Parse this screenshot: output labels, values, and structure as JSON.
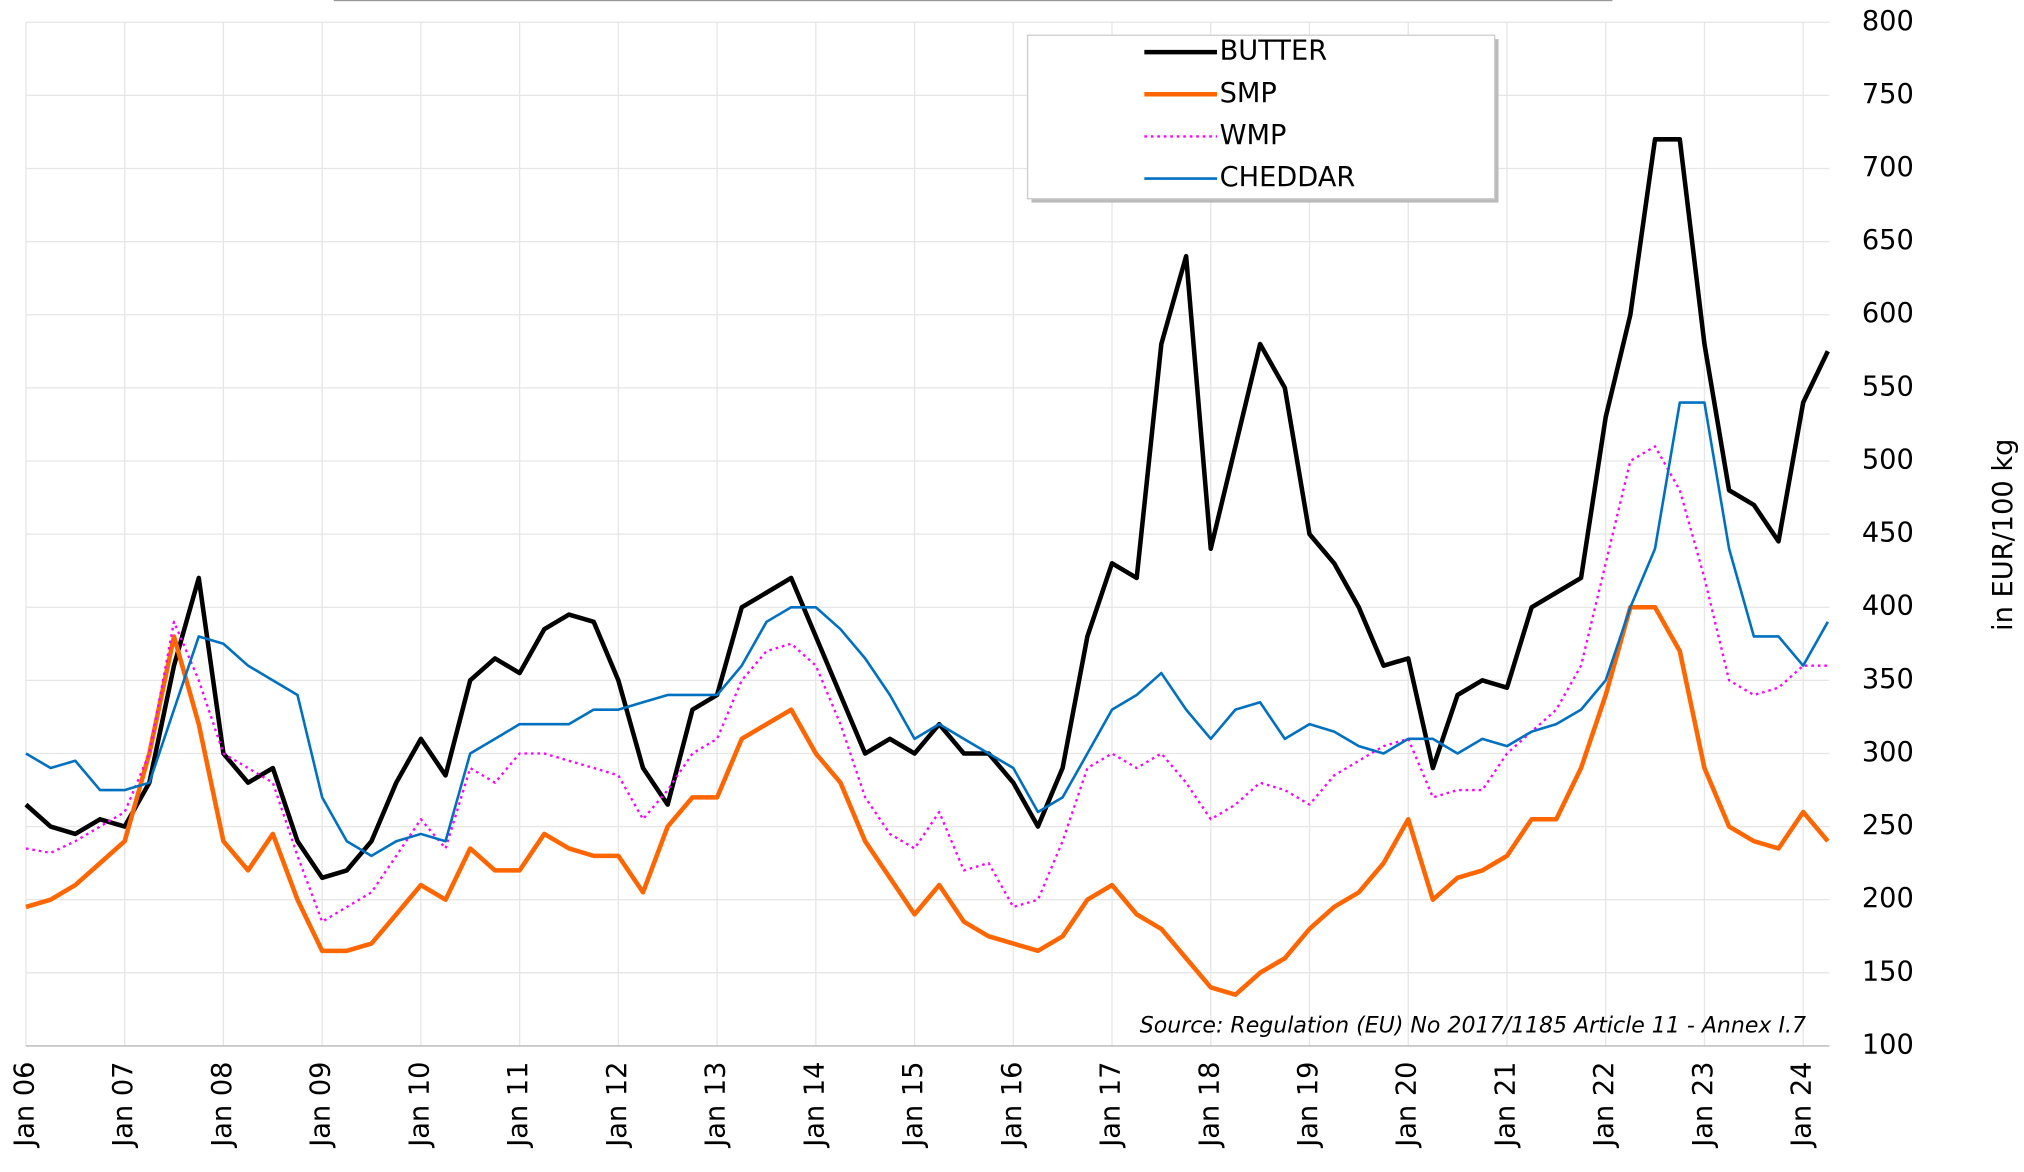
{
  "chart_data": {
    "type": "line",
    "source": "Source: Regulation (EU) No 2017/1185 Article 11 - Annex I.7",
    "y_label": "in EUR/100 kg",
    "x": [
      "2006-01",
      "2006-04",
      "2006-07",
      "2006-10",
      "2007-01",
      "2007-04",
      "2007-07",
      "2007-10",
      "2008-01",
      "2008-04",
      "2008-07",
      "2008-10",
      "2009-01",
      "2009-04",
      "2009-07",
      "2009-10",
      "2010-01",
      "2010-04",
      "2010-07",
      "2010-10",
      "2011-01",
      "2011-04",
      "2011-07",
      "2011-10",
      "2012-01",
      "2012-04",
      "2012-07",
      "2012-10",
      "2013-01",
      "2013-04",
      "2013-07",
      "2013-10",
      "2014-01",
      "2014-04",
      "2014-07",
      "2014-10",
      "2015-01",
      "2015-04",
      "2015-07",
      "2015-10",
      "2016-01",
      "2016-04",
      "2016-07",
      "2016-10",
      "2017-01",
      "2017-04",
      "2017-07",
      "2017-10",
      "2018-01",
      "2018-04",
      "2018-07",
      "2018-10",
      "2019-01",
      "2019-04",
      "2019-07",
      "2019-10",
      "2020-01",
      "2020-04",
      "2020-07",
      "2020-10",
      "2021-01",
      "2021-04",
      "2021-07",
      "2021-10",
      "2022-01",
      "2022-04",
      "2022-07",
      "2022-10",
      "2023-01",
      "2023-04",
      "2023-07",
      "2023-10",
      "2024-01",
      "2024-04"
    ],
    "series": [
      {
        "name": "BUTTER",
        "color": "#000000",
        "values": [
          265,
          250,
          245,
          255,
          250,
          280,
          360,
          420,
          300,
          280,
          290,
          240,
          215,
          220,
          240,
          280,
          310,
          285,
          350,
          365,
          355,
          385,
          395,
          390,
          350,
          290,
          265,
          330,
          340,
          400,
          410,
          420,
          380,
          340,
          300,
          310,
          300,
          320,
          300,
          300,
          280,
          250,
          290,
          380,
          430,
          420,
          580,
          640,
          440,
          510,
          580,
          550,
          450,
          430,
          400,
          360,
          365,
          290,
          340,
          350,
          345,
          400,
          410,
          420,
          530,
          600,
          720,
          720,
          580,
          480,
          470,
          445,
          540,
          575
        ]
      },
      {
        "name": "SMP",
        "color": "#ff6600",
        "values": [
          195,
          200,
          210,
          225,
          240,
          300,
          380,
          320,
          240,
          220,
          245,
          200,
          165,
          165,
          170,
          190,
          210,
          200,
          235,
          220,
          220,
          245,
          235,
          230,
          230,
          205,
          250,
          270,
          270,
          310,
          320,
          330,
          300,
          280,
          240,
          215,
          190,
          210,
          185,
          175,
          170,
          165,
          175,
          200,
          210,
          190,
          180,
          160,
          140,
          135,
          150,
          160,
          180,
          195,
          205,
          225,
          255,
          200,
          215,
          220,
          230,
          255,
          255,
          290,
          340,
          400,
          400,
          370,
          290,
          250,
          240,
          235,
          260,
          240
        ]
      },
      {
        "name": "WMP",
        "color": "#ff00ff",
        "values": [
          235,
          232,
          240,
          250,
          260,
          300,
          390,
          350,
          300,
          290,
          280,
          230,
          185,
          195,
          205,
          230,
          255,
          235,
          290,
          280,
          300,
          300,
          295,
          290,
          285,
          255,
          275,
          300,
          310,
          350,
          370,
          375,
          360,
          320,
          270,
          245,
          235,
          260,
          220,
          225,
          195,
          200,
          240,
          290,
          300,
          290,
          300,
          280,
          255,
          265,
          280,
          275,
          265,
          285,
          295,
          305,
          310,
          270,
          275,
          275,
          300,
          315,
          330,
          360,
          430,
          500,
          510,
          480,
          420,
          350,
          340,
          345,
          360,
          360
        ]
      },
      {
        "name": "CHEDDAR",
        "color": "#0070c0",
        "values": [
          300,
          290,
          295,
          275,
          275,
          280,
          330,
          380,
          375,
          360,
          350,
          340,
          270,
          240,
          230,
          240,
          245,
          240,
          300,
          310,
          320,
          320,
          320,
          330,
          330,
          335,
          340,
          340,
          340,
          360,
          390,
          400,
          400,
          385,
          365,
          340,
          310,
          320,
          310,
          300,
          290,
          260,
          270,
          300,
          330,
          340,
          355,
          330,
          310,
          330,
          335,
          310,
          320,
          315,
          305,
          300,
          310,
          310,
          300,
          310,
          305,
          315,
          320,
          330,
          350,
          400,
          440,
          540,
          540,
          440,
          380,
          380,
          360,
          390
        ]
      }
    ],
    "xticks": [
      {
        "value": "2006-01",
        "label": "Jan 06"
      },
      {
        "value": "2007-01",
        "label": "Jan 07"
      },
      {
        "value": "2008-01",
        "label": "Jan 08"
      },
      {
        "value": "2009-01",
        "label": "Jan 09"
      },
      {
        "value": "2010-01",
        "label": "Jan 10"
      },
      {
        "value": "2011-01",
        "label": "Jan 11"
      },
      {
        "value": "2012-01",
        "label": "Jan 12"
      },
      {
        "value": "2013-01",
        "label": "Jan 13"
      },
      {
        "value": "2014-01",
        "label": "Jan 14"
      },
      {
        "value": "2015-01",
        "label": "Jan 15"
      },
      {
        "value": "2016-01",
        "label": "Jan 16"
      },
      {
        "value": "2017-01",
        "label": "Jan 17"
      },
      {
        "value": "2018-01",
        "label": "Jan 18"
      },
      {
        "value": "2019-01",
        "label": "Jan 19"
      },
      {
        "value": "2020-01",
        "label": "Jan 20"
      },
      {
        "value": "2021-01",
        "label": "Jan 21"
      },
      {
        "value": "2022-01",
        "label": "Jan 22"
      },
      {
        "value": "2023-01",
        "label": "Jan 23"
      },
      {
        "value": "2024-01",
        "label": "Jan 24"
      }
    ],
    "ylim": [
      100,
      800
    ],
    "yticks": [
      100,
      150,
      200,
      250,
      300,
      350,
      400,
      450,
      500,
      550,
      600,
      650,
      700,
      750,
      800
    ],
    "y_axis_side": "right",
    "grid": true
  }
}
